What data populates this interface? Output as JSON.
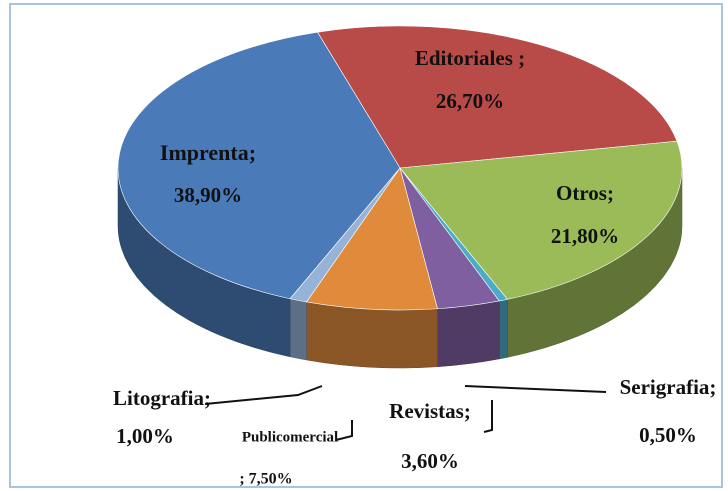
{
  "chart_data": {
    "type": "pie",
    "three_d": true,
    "categories": [
      "Editoriales ;",
      "Otros;",
      "Serigrafia;",
      "Revistas;",
      "Publicomercial",
      "Litografia;",
      "Imprenta;"
    ],
    "values": [
      26.7,
      21.8,
      0.5,
      3.6,
      7.5,
      1.0,
      38.9
    ],
    "value_labels": [
      "26,70%",
      "21,80%",
      "0,50%",
      "3,60%",
      "; 7,50%",
      "1,00%",
      "38,90%"
    ],
    "colors": [
      "#b84a47",
      "#9bbb59",
      "#4bacc6",
      "#7f5fa0",
      "#e08a3c",
      "#95b3d7",
      "#4a7ab8"
    ]
  }
}
